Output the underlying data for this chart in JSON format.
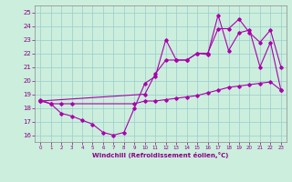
{
  "title": "",
  "xlabel": "Windchill (Refroidissement éolien,°C)",
  "xlim": [
    -0.5,
    23.5
  ],
  "ylim": [
    15.5,
    25.5
  ],
  "xticks": [
    0,
    1,
    2,
    3,
    4,
    5,
    6,
    7,
    8,
    9,
    10,
    11,
    12,
    13,
    14,
    15,
    16,
    17,
    18,
    19,
    20,
    21,
    22,
    23
  ],
  "yticks": [
    16,
    17,
    18,
    19,
    20,
    21,
    22,
    23,
    24,
    25
  ],
  "bg_color": "#cceedd",
  "line_color": "#aa00aa",
  "grid_color": "#99cccc",
  "series": [
    {
      "x": [
        0,
        1,
        2,
        3,
        4,
        5,
        6,
        7,
        8,
        9,
        10,
        11,
        12,
        13,
        14,
        15,
        16,
        17,
        18,
        19,
        20,
        21,
        22,
        23
      ],
      "y": [
        18.5,
        18.3,
        17.6,
        17.4,
        17.1,
        16.8,
        16.2,
        16.0,
        16.2,
        18.0,
        19.8,
        20.3,
        23.0,
        21.5,
        21.5,
        22.0,
        21.9,
        24.8,
        22.2,
        23.5,
        23.7,
        21.0,
        22.8,
        19.3
      ]
    },
    {
      "x": [
        0,
        1,
        2,
        3,
        9,
        10,
        11,
        12,
        13,
        14,
        15,
        16,
        17,
        18,
        19,
        20,
        21,
        22,
        23
      ],
      "y": [
        18.6,
        18.3,
        18.3,
        18.3,
        18.3,
        18.5,
        18.5,
        18.6,
        18.7,
        18.8,
        18.9,
        19.1,
        19.3,
        19.5,
        19.6,
        19.7,
        19.8,
        19.9,
        19.3
      ]
    },
    {
      "x": [
        0,
        10,
        11,
        12,
        13,
        14,
        15,
        16,
        17,
        18,
        19,
        20,
        21,
        22,
        23
      ],
      "y": [
        18.5,
        19.0,
        20.5,
        21.5,
        21.5,
        21.5,
        22.0,
        22.0,
        23.8,
        23.8,
        24.5,
        23.5,
        22.8,
        23.7,
        21.0
      ]
    }
  ]
}
